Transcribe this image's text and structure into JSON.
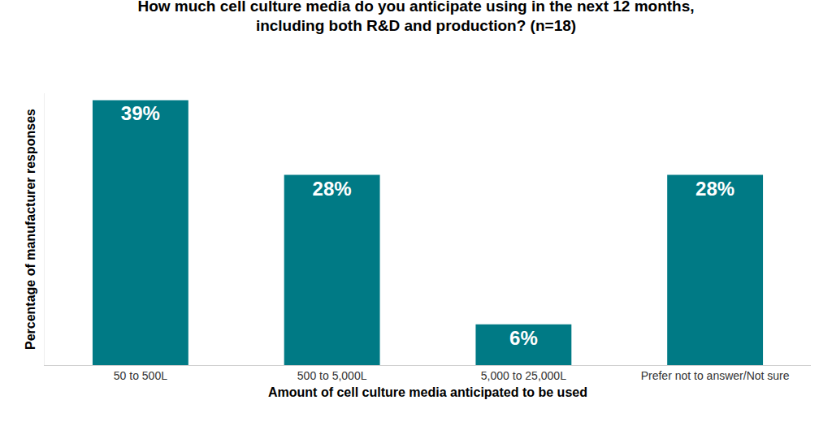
{
  "chart_data": {
    "type": "bar",
    "title": [
      "How much cell culture media do you anticipate using in the next 12 months,",
      "including both R&D and production? (n=18)"
    ],
    "x_label": "Amount of cell culture media anticipated to be used",
    "y_label": "Percentage of manufacturer responses",
    "categories": [
      "50 to 500L",
      "500 to 5,000L",
      "5,000 to 25,000L",
      "Prefer not to answer/Not sure"
    ],
    "values": [
      39,
      28,
      6,
      28
    ],
    "value_labels": [
      "39%",
      "28%",
      "6%",
      "28%"
    ],
    "color": "#007a85",
    "ylim": [
      0,
      40
    ],
    "yticks": [],
    "grid": false,
    "data_labels": true,
    "tick_labels": "x"
  }
}
